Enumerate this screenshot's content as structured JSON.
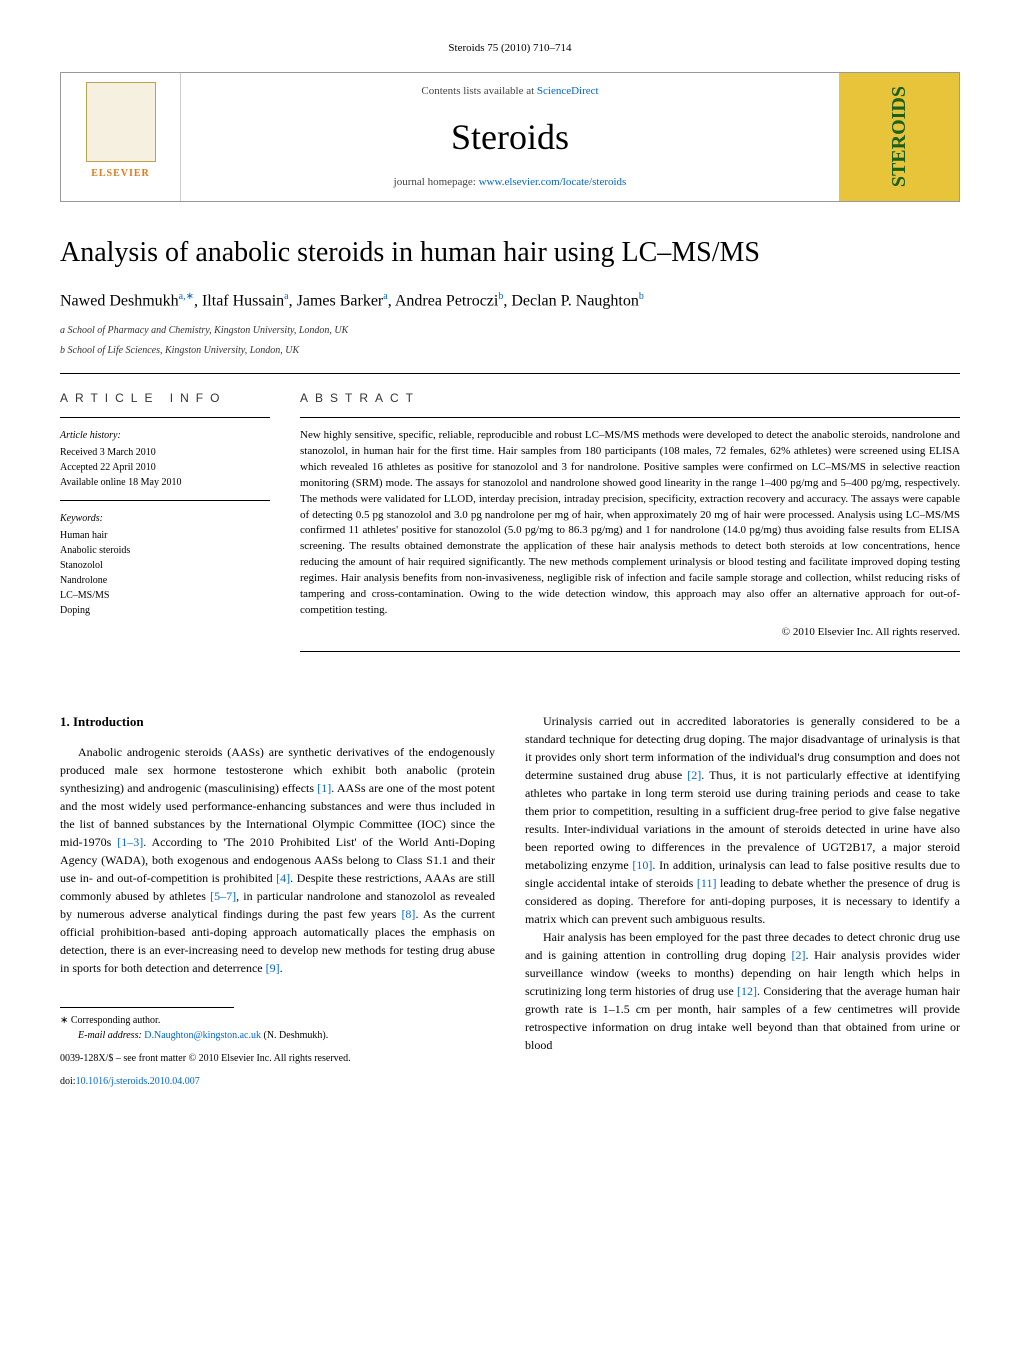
{
  "page_header": "Steroids 75 (2010) 710–714",
  "banner": {
    "contents_line_text": "Contents lists available at ",
    "contents_line_link": "ScienceDirect",
    "journal_title": "Steroids",
    "homepage_text": "journal homepage: ",
    "homepage_link": "www.elsevier.com/locate/steroids",
    "elsevier_label": "ELSEVIER",
    "cover_text": "STEROIDS"
  },
  "title": "Analysis of anabolic steroids in human hair using LC–MS/MS",
  "authors_html": "Nawed Deshmukh",
  "author_sup1": "a,∗",
  "author2": ", Iltaf Hussain",
  "author_sup2": "a",
  "author3": ", James Barker",
  "author_sup3": "a",
  "author4": ", Andrea Petroczi",
  "author_sup4": "b",
  "author5": ", Declan P. Naughton",
  "author_sup5": "b",
  "affiliations": {
    "a": "a School of Pharmacy and Chemistry, Kingston University, London, UK",
    "b": "b School of Life Sciences, Kingston University, London, UK"
  },
  "article_info": {
    "label": "ARTICLE INFO",
    "history_heading": "Article history:",
    "received": "Received 3 March 2010",
    "accepted": "Accepted 22 April 2010",
    "available": "Available online 18 May 2010",
    "keywords_heading": "Keywords:",
    "keywords": [
      "Human hair",
      "Anabolic steroids",
      "Stanozolol",
      "Nandrolone",
      "LC–MS/MS",
      "Doping"
    ]
  },
  "abstract": {
    "label": "ABSTRACT",
    "text": "New highly sensitive, specific, reliable, reproducible and robust LC–MS/MS methods were developed to detect the anabolic steroids, nandrolone and stanozolol, in human hair for the first time. Hair samples from 180 participants (108 males, 72 females, 62% athletes) were screened using ELISA which revealed 16 athletes as positive for stanozolol and 3 for nandrolone. Positive samples were confirmed on LC–MS/MS in selective reaction monitoring (SRM) mode. The assays for stanozolol and nandrolone showed good linearity in the range 1–400 pg/mg and 5–400 pg/mg, respectively. The methods were validated for LLOD, interday precision, intraday precision, specificity, extraction recovery and accuracy. The assays were capable of detecting 0.5 pg stanozolol and 3.0 pg nandrolone per mg of hair, when approximately 20 mg of hair were processed. Analysis using LC–MS/MS confirmed 11 athletes' positive for stanozolol (5.0 pg/mg to 86.3 pg/mg) and 1 for nandrolone (14.0 pg/mg) thus avoiding false results from ELISA screening. The results obtained demonstrate the application of these hair analysis methods to detect both steroids at low concentrations, hence reducing the amount of hair required significantly. The new methods complement urinalysis or blood testing and facilitate improved doping testing regimes. Hair analysis benefits from non-invasiveness, negligible risk of infection and facile sample storage and collection, whilst reducing risks of tampering and cross-contamination. Owing to the wide detection window, this approach may also offer an alternative approach for out-of-competition testing.",
    "copyright": "© 2010 Elsevier Inc. All rights reserved."
  },
  "intro": {
    "heading": "1.  Introduction",
    "para1_a": "Anabolic androgenic steroids (AASs) are synthetic derivatives of the endogenously produced male sex hormone testosterone which exhibit both anabolic (protein synthesizing) and androgenic (masculinising) effects ",
    "ref1": "[1]",
    "para1_b": ". AASs are one of the most potent and the most widely used performance-enhancing substances and were thus included in the list of banned substances by the International Olympic Committee (IOC) since the mid-1970s ",
    "ref13": "[1–3]",
    "para1_c": ". According to 'The 2010 Prohibited List' of the World Anti-Doping Agency (WADA), both exogenous and endogenous AASs belong to Class S1.1 and their use in- and out-of-competition is prohibited ",
    "ref4": "[4]",
    "para1_d": ". Despite these restrictions, AAAs are still commonly abused by athletes ",
    "ref57": "[5–7]",
    "para1_e": ", in particular nandrolone and stanozolol as revealed by numerous adverse analytical findings during the past few years ",
    "ref8": "[8]",
    "para1_f": ". As the current official prohibition-based anti-doping approach automatically places the emphasis on detection, there is an ever-increasing need to develop new methods for testing drug abuse in sports for both detection and deterrence ",
    "ref9": "[9]",
    "para1_g": ".",
    "para2_a": "Urinalysis carried out in accredited laboratories is generally considered to be a standard technique for detecting drug doping. The major disadvantage of urinalysis is that it provides only short term information of the individual's drug consumption and does not determine sustained drug abuse ",
    "ref2a": "[2]",
    "para2_b": ". Thus, it is not particularly effective at identifying athletes who partake in long term steroid use during training periods and cease to take them prior to competition, resulting in a sufficient drug-free period to give false negative results. Inter-individual variations in the amount of steroids detected in urine have also been reported owing to differences in the prevalence of UGT2B17, a major steroid metabolizing enzyme ",
    "ref10": "[10]",
    "para2_c": ". In addition, urinalysis can lead to false positive results due to single accidental intake of steroids ",
    "ref11": "[11]",
    "para2_d": " leading to debate whether the presence of drug is considered as doping. Therefore for anti-doping purposes, it is necessary to identify a matrix which can prevent such ambiguous results.",
    "para3_a": "Hair analysis has been employed for the past three decades to detect chronic drug use and is gaining attention in controlling drug doping ",
    "ref2b": "[2]",
    "para3_b": ". Hair analysis provides wider surveillance window (weeks to months) depending on hair length which helps in scrutinizing long term histories of drug use ",
    "ref12": "[12]",
    "para3_c": ". Considering that the average human hair growth rate is 1–1.5 cm per month, hair samples of a few centimetres will provide retrospective information on drug intake well beyond than that obtained from urine or blood"
  },
  "footnote": {
    "corresponding": "∗ Corresponding author.",
    "email_label": "E-mail address: ",
    "email": "D.Naughton@kingston.ac.uk",
    "email_after": " (N. Deshmukh).",
    "copyright_line": "0039-128X/$ – see front matter © 2010 Elsevier Inc. All rights reserved.",
    "doi_label": "doi:",
    "doi": "10.1016/j.steroids.2010.04.007"
  }
}
